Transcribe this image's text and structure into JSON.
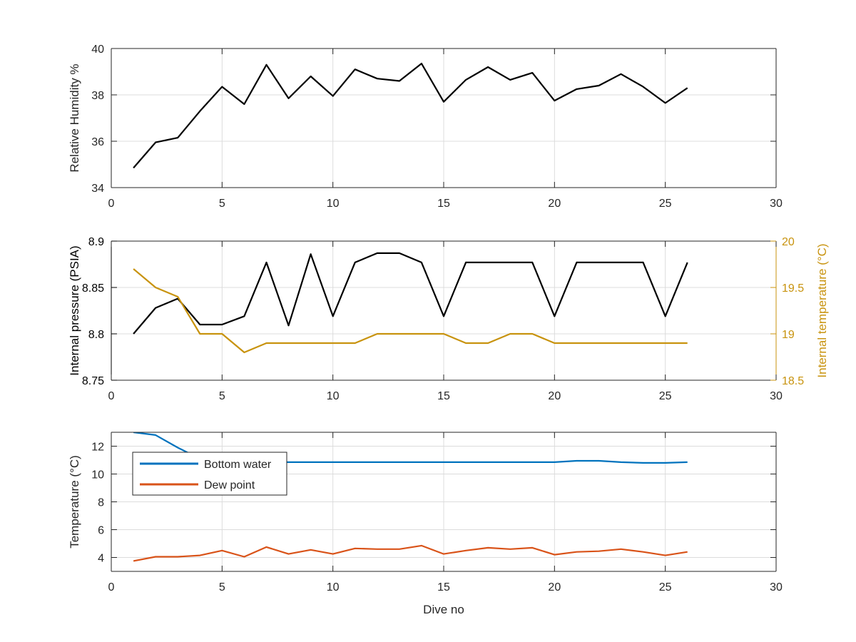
{
  "chart_data": [
    {
      "type": "line",
      "title": "",
      "xlabel": "",
      "ylabel": "Relative Humidity %",
      "xlim": [
        0,
        30
      ],
      "ylim": [
        34,
        40
      ],
      "xticks": [
        0,
        5,
        10,
        15,
        20,
        25,
        30
      ],
      "yticks": [
        34,
        36,
        38,
        40
      ],
      "grid": true,
      "series": [
        {
          "color": "#000000",
          "x": [
            1,
            2,
            3,
            4,
            5,
            6,
            7,
            8,
            9,
            10,
            11,
            12,
            13,
            14,
            15,
            16,
            17,
            18,
            19,
            20,
            21,
            22,
            23,
            24,
            25,
            26
          ],
          "values": [
            34.85,
            35.95,
            36.15,
            37.3,
            38.35,
            37.6,
            39.3,
            37.85,
            38.8,
            37.95,
            39.1,
            38.7,
            38.6,
            39.35,
            37.7,
            38.65,
            39.2,
            38.65,
            38.95,
            37.75,
            38.25,
            38.4,
            38.9,
            38.35,
            37.65,
            38.3
          ]
        }
      ]
    },
    {
      "type": "line",
      "title": "",
      "xlabel": "",
      "ylabel": "Internal pressure (PSIA)",
      "y2label": "Internal temperature (°C)",
      "xlim": [
        0,
        30
      ],
      "ylim": [
        8.75,
        8.9
      ],
      "y2lim": [
        18.5,
        20
      ],
      "xticks": [
        0,
        5,
        10,
        15,
        20,
        25,
        30
      ],
      "yticks": [
        8.75,
        8.8,
        8.85,
        8.9
      ],
      "y2ticks": [
        18.5,
        19,
        19.5,
        20
      ],
      "grid": true,
      "series": [
        {
          "axis": "left",
          "color": "#000000",
          "x": [
            1,
            2,
            3,
            4,
            5,
            6,
            7,
            8,
            9,
            10,
            11,
            12,
            13,
            14,
            15,
            16,
            17,
            18,
            19,
            20,
            21,
            22,
            23,
            24,
            25,
            26
          ],
          "values": [
            8.8,
            8.828,
            8.838,
            8.81,
            8.81,
            8.819,
            8.877,
            8.809,
            8.886,
            8.819,
            8.877,
            8.887,
            8.887,
            8.877,
            8.819,
            8.877,
            8.877,
            8.877,
            8.877,
            8.819,
            8.877,
            8.877,
            8.877,
            8.877,
            8.819,
            8.877
          ]
        },
        {
          "axis": "right",
          "color": "#C8930E",
          "x": [
            1,
            2,
            3,
            4,
            5,
            6,
            7,
            8,
            9,
            10,
            11,
            12,
            13,
            14,
            15,
            16,
            17,
            18,
            19,
            20,
            21,
            22,
            23,
            24,
            25,
            26
          ],
          "values": [
            19.7,
            19.5,
            19.4,
            19.0,
            19.0,
            18.8,
            18.9,
            18.9,
            18.9,
            18.9,
            18.9,
            19.0,
            19.0,
            19.0,
            19.0,
            18.9,
            18.9,
            19.0,
            19.0,
            18.9,
            18.9,
            18.9,
            18.9,
            18.9,
            18.9,
            18.9
          ]
        }
      ],
      "axis_colors": {
        "left": "#000000",
        "right": "#C8930E"
      }
    },
    {
      "type": "line",
      "title": "",
      "xlabel": "Dive no",
      "ylabel": "Temperature (°C)",
      "xlim": [
        0,
        30
      ],
      "ylim": [
        3,
        13
      ],
      "xticks": [
        0,
        5,
        10,
        15,
        20,
        25,
        30
      ],
      "yticks": [
        4,
        6,
        8,
        10,
        12
      ],
      "grid": true,
      "legend": "top-left",
      "series": [
        {
          "name": "Bottom water",
          "color": "#0072BD",
          "x": [
            1,
            2,
            3,
            4,
            5,
            6,
            7,
            8,
            9,
            10,
            11,
            12,
            13,
            14,
            15,
            16,
            17,
            18,
            19,
            20,
            21,
            22,
            23,
            24,
            25,
            26
          ],
          "values": [
            13.0,
            12.8,
            11.9,
            11.1,
            10.9,
            10.85,
            10.85,
            10.85,
            10.85,
            10.85,
            10.85,
            10.85,
            10.85,
            10.85,
            10.85,
            10.85,
            10.85,
            10.85,
            10.85,
            10.85,
            10.95,
            10.95,
            10.85,
            10.8,
            10.8,
            10.85
          ]
        },
        {
          "name": "Dew point",
          "color": "#D95319",
          "x": [
            1,
            2,
            3,
            4,
            5,
            6,
            7,
            8,
            9,
            10,
            11,
            12,
            13,
            14,
            15,
            16,
            17,
            18,
            19,
            20,
            21,
            22,
            23,
            24,
            25,
            26
          ],
          "values": [
            3.75,
            4.05,
            4.05,
            4.15,
            4.5,
            4.05,
            4.75,
            4.25,
            4.55,
            4.25,
            4.65,
            4.6,
            4.6,
            4.85,
            4.25,
            4.5,
            4.7,
            4.6,
            4.7,
            4.2,
            4.4,
            4.45,
            4.6,
            4.4,
            4.15,
            4.4
          ]
        }
      ]
    }
  ]
}
